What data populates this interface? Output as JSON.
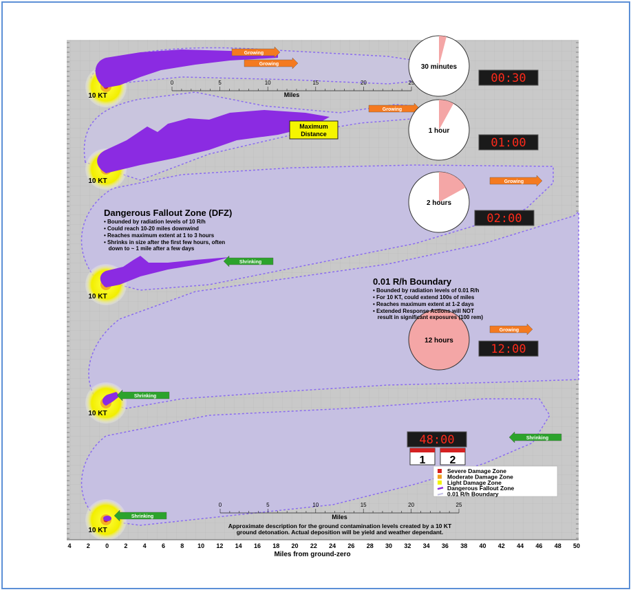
{
  "snapshots": [
    {
      "yield_label": "10 KT",
      "clock_label": "30 minutes",
      "digital_time": "00:30",
      "clock_fraction": 0.04
    },
    {
      "yield_label": "10 KT",
      "clock_label": "1 hour",
      "digital_time": "01:00",
      "clock_fraction": 0.08
    },
    {
      "yield_label": "10 KT",
      "clock_label": "2 hours",
      "digital_time": "02:00",
      "clock_fraction": 0.17
    },
    {
      "yield_label": "10 KT",
      "clock_label": "12 hours",
      "digital_time": "12:00",
      "clock_fraction": 1.0
    },
    {
      "yield_label": "10 KT"
    },
    {
      "yield_label": "10 KT",
      "digital_time": "48:00",
      "calendar_days": [
        "1",
        "2"
      ]
    }
  ],
  "arrows": {
    "growing": "Growing",
    "shrinking": "Shrinking"
  },
  "callout_max_distance": [
    "Maximum",
    "Distance"
  ],
  "dfz_box": {
    "title": "Dangerous Fallout Zone (DFZ)",
    "bullets": [
      "• Bounded by radiation levels of 10 R/h",
      "• Could reach 10-20 miles downwind",
      "• Reaches maximum extent at 1 to 3 hours",
      "• Shrinks in size after the first few hours, often",
      "   down to ~ 1 mile after a few days"
    ]
  },
  "boundary_box": {
    "title": "0.01 R/h Boundary",
    "bullets": [
      "• Bounded by radiation levels of 0.01 R/h",
      "• For 10 KT, could extend 100s of miles",
      "• Reaches maximum extent at 1-2 days",
      "• Extended Response Actions will NOT",
      "   result in significant exposures (100 rem)"
    ]
  },
  "scale_top": {
    "ticks": [
      "0",
      "5",
      "10",
      "15",
      "20",
      "25"
    ],
    "label": "Miles"
  },
  "scale_bottom": {
    "ticks": [
      "0",
      "5",
      "10",
      "15",
      "20",
      "25"
    ],
    "label": "Miles"
  },
  "legend": [
    {
      "label": "Severe Damage Zone",
      "color": "#d42020"
    },
    {
      "label": "Moderate Damage Zone",
      "color": "#f0a020"
    },
    {
      "label": "Light Damage Zone",
      "color": "#f2f200"
    },
    {
      "label": "Dangerous Fallout Zone",
      "color": "#8b2be2"
    },
    {
      "label": "0.01 R/h Boundary",
      "color": "#c4c0e6"
    }
  ],
  "caption": [
    "Approximate description for the ground contamination levels created by a 10 KT",
    "ground detonation.  Actual deposition will be yield and weather dependant."
  ],
  "x_axis": {
    "ticks": [
      "4",
      "2",
      "0",
      "2",
      "4",
      "6",
      "8",
      "10",
      "12",
      "14",
      "16",
      "18",
      "20",
      "22",
      "24",
      "26",
      "28",
      "30",
      "32",
      "34",
      "36",
      "38",
      "40",
      "42",
      "44",
      "46",
      "48",
      "50"
    ],
    "label": "Miles from ground-zero"
  },
  "colors": {
    "panel_bg": "#c9c9c9",
    "fallout_purple": "#8b2be2",
    "boundary_fill": "#c6c0e2",
    "dashed_line": "#8a6bf0",
    "growing_orange": "#f47a20",
    "shrinking_green": "#2ca32c",
    "led_red": "#ff2a1a",
    "clock_pink": "#f4a6a6",
    "yellow": "#f5f500"
  }
}
